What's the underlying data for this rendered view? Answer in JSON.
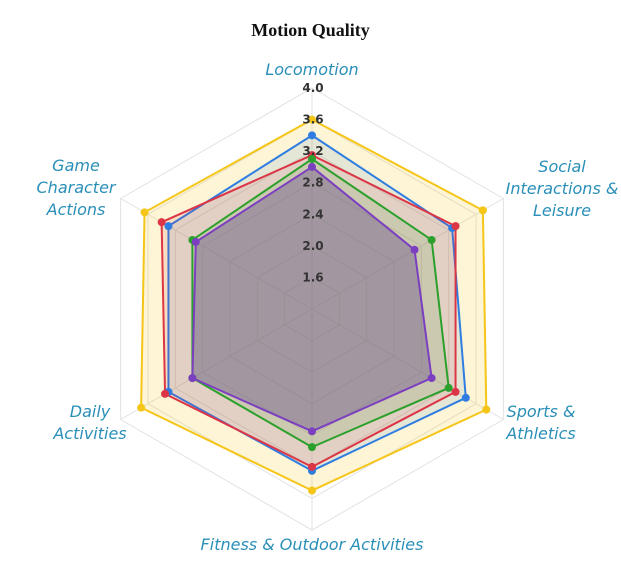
{
  "chart_data": {
    "type": "radar",
    "title": "Motion Quality",
    "axes": [
      [
        "Locomotion"
      ],
      [
        "Social",
        "Interactions &",
        "Leisure"
      ],
      [
        "Sports &",
        "Athletics"
      ],
      [
        "Fitness & Outdoor Activities"
      ],
      [
        "Daily",
        "Activities"
      ],
      [
        "Game",
        "Character",
        "Actions"
      ]
    ],
    "rlim": [
      1.2,
      4.0
    ],
    "ticks": [
      "1.6",
      "2.0",
      "2.4",
      "2.8",
      "3.2",
      "3.6",
      "4.0"
    ],
    "grid": true,
    "series": [
      {
        "color": "#f5c518",
        "fill": "rgba(245,197,24,0.18)",
        "values": [
          3.6,
          3.7,
          3.75,
          3.5,
          3.7,
          3.65
        ]
      },
      {
        "color": "#2f7de1",
        "fill": "rgba(47,125,225,0.12)",
        "values": [
          3.4,
          3.25,
          3.45,
          3.25,
          3.3,
          3.3
        ]
      },
      {
        "color": "#dc3545",
        "fill": "rgba(220,53,69,0.12)",
        "values": [
          3.15,
          3.3,
          3.3,
          3.2,
          3.35,
          3.4
        ]
      },
      {
        "color": "#2ca02c",
        "fill": "rgba(44,160,44,0.12)",
        "values": [
          3.1,
          2.95,
          3.2,
          2.95,
          2.95,
          2.95
        ]
      },
      {
        "color": "#7b3fbf",
        "fill": "rgba(110,90,140,0.45)",
        "values": [
          3.0,
          2.7,
          2.95,
          2.75,
          2.95,
          2.9
        ]
      }
    ]
  }
}
